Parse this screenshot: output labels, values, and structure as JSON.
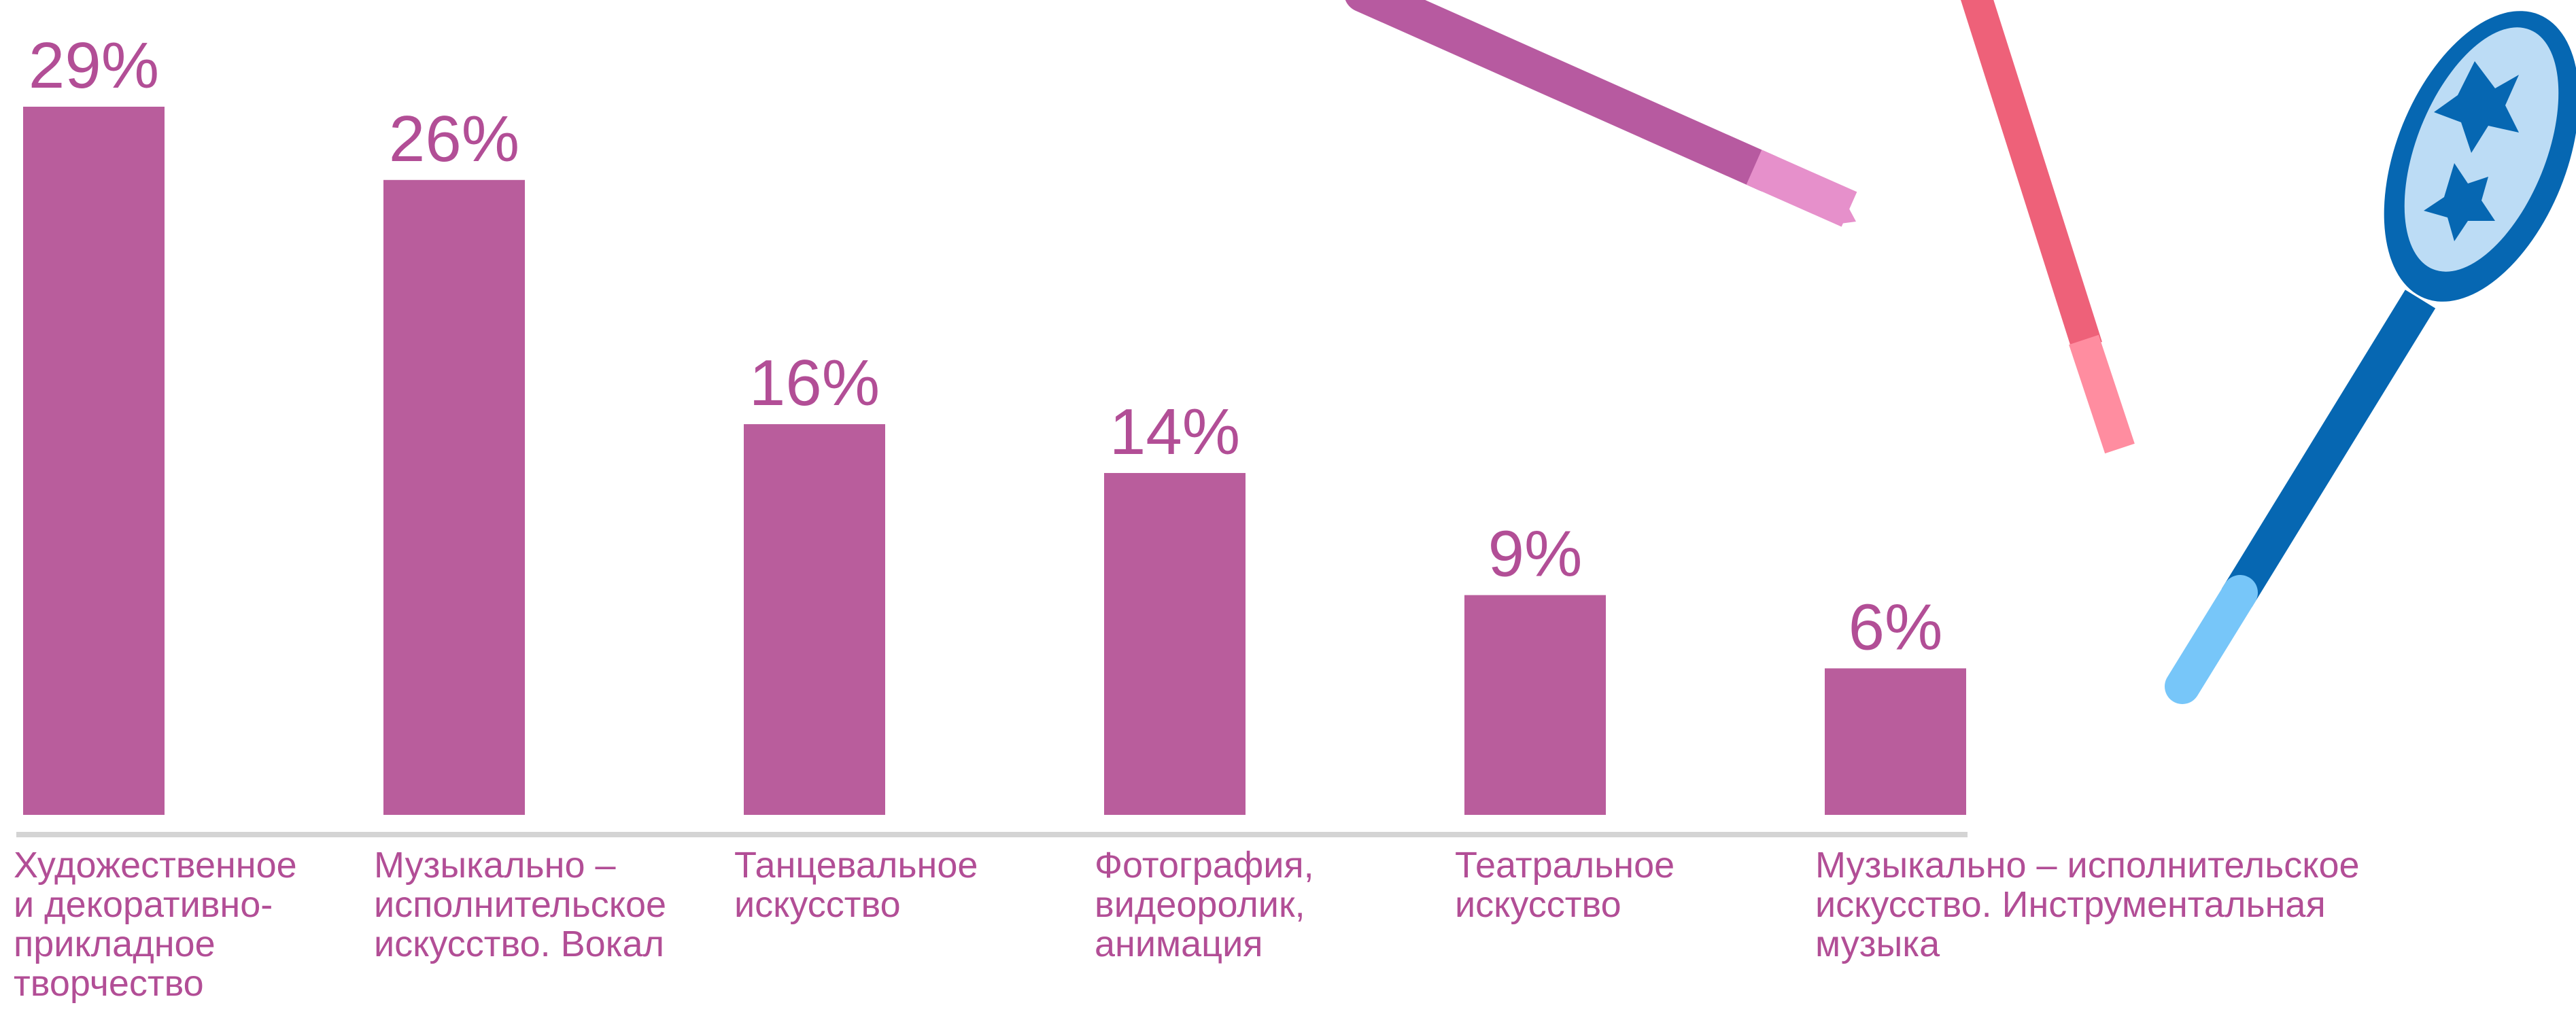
{
  "chart_data": {
    "type": "bar",
    "categories": [
      "Художественное\nи декоративно-\nприкладное\nтворчество",
      "Музыкально –\nисполнительское\nискусство. Вокал",
      "Танцевальное\nискусство",
      "Фотография,\nвидеоролик,\nанимация",
      "Театральное\nискусство",
      "Музыкально – исполнительское\nискусство. Инструментальная\nмузыка"
    ],
    "values": [
      29,
      26,
      16,
      14,
      9,
      6
    ],
    "value_labels": [
      "29%",
      "26%",
      "16%",
      "14%",
      "9%",
      "6%"
    ],
    "color": "#b95d9c"
  }
}
